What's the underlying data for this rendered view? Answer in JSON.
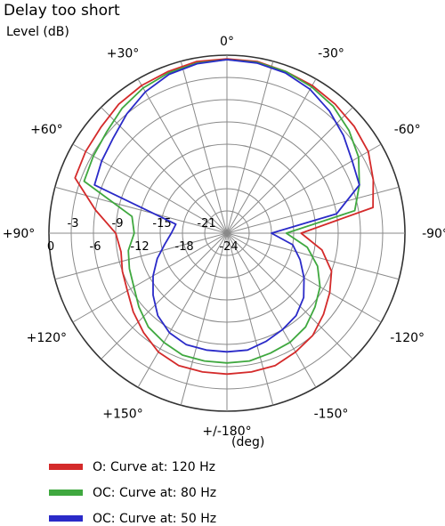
{
  "chart_data": {
    "type": "polar-line",
    "title": "Delay too short",
    "radial_unit": "Level (dB)",
    "angle_unit": "(deg)",
    "rmin": -24,
    "rmax": 0,
    "ring_values": [
      0,
      -3,
      -6,
      -9,
      -12,
      -15,
      -18,
      -21,
      -24
    ],
    "ring_tick_labels": [
      "0",
      "-3",
      "-6",
      "-9",
      "-12",
      "-15",
      "-18",
      "-21",
      "-24"
    ],
    "angle_labels": [
      {
        "angle": 0,
        "text": "0°"
      },
      {
        "angle": -30,
        "text": "-30°"
      },
      {
        "angle": -60,
        "text": "-60°"
      },
      {
        "angle": -90,
        "text": "-90°"
      },
      {
        "angle": -120,
        "text": "-120°"
      },
      {
        "angle": -150,
        "text": "-150°"
      },
      {
        "angle": 180,
        "text": "+/-180°"
      },
      {
        "angle": 150,
        "text": "+150°"
      },
      {
        "angle": 120,
        "text": "+120°"
      },
      {
        "angle": 90,
        "text": "+90°"
      },
      {
        "angle": 60,
        "text": "+60°"
      },
      {
        "angle": 30,
        "text": "+30°"
      }
    ],
    "angles": [
      0,
      10,
      20,
      30,
      40,
      50,
      60,
      70,
      80,
      90,
      100,
      110,
      120,
      130,
      140,
      150,
      160,
      170,
      180,
      190,
      200,
      210,
      220,
      230,
      240,
      250,
      260,
      270,
      280,
      290,
      300,
      310,
      320,
      330,
      340,
      350
    ],
    "series": [
      {
        "name": "O: Curve at: 120 Hz",
        "color": "#d42a2a",
        "values": [
          -0.5,
          -0.5,
          -0.8,
          -1.0,
          -1.3,
          -1.8,
          -2.0,
          -2.2,
          -6.0,
          -9.0,
          -9.5,
          -9.0,
          -8.5,
          -7.5,
          -6.5,
          -5.5,
          -5.0,
          -5.0,
          -5.0,
          -5.0,
          -5.0,
          -5.5,
          -6.0,
          -7.0,
          -8.0,
          -9.0,
          -11.0,
          -14.0,
          -4.0,
          -3.0,
          -2.0,
          -1.6,
          -1.3,
          -1.0,
          -0.8,
          -0.5
        ]
      },
      {
        "name": "OC: Curve at: 80 Hz",
        "color": "#3fa83f",
        "values": [
          -0.6,
          -0.7,
          -1.0,
          -1.4,
          -2.0,
          -2.8,
          -3.2,
          -3.5,
          -11.0,
          -11.5,
          -10.5,
          -10.0,
          -9.5,
          -8.5,
          -7.5,
          -7.0,
          -6.5,
          -6.5,
          -6.5,
          -6.5,
          -6.8,
          -7.0,
          -7.5,
          -8.5,
          -9.5,
          -11.0,
          -13.0,
          -16.0,
          -6.5,
          -5.0,
          -3.5,
          -2.5,
          -1.7,
          -1.2,
          -0.8,
          -0.6
        ]
      },
      {
        "name": "OC: Curve at: 50 Hz",
        "color": "#2a2ac8",
        "values": [
          -0.6,
          -0.8,
          -1.2,
          -2.0,
          -3.0,
          -4.0,
          -4.5,
          -5.0,
          -17.0,
          -16.5,
          -15.5,
          -14.0,
          -12.5,
          -11.0,
          -9.5,
          -8.5,
          -8.0,
          -8.0,
          -8.0,
          -8.0,
          -8.5,
          -9.0,
          -9.5,
          -10.5,
          -12.0,
          -13.5,
          -15.0,
          -18.0,
          -9.0,
          -5.0,
          -4.5,
          -3.5,
          -2.5,
          -1.6,
          -1.0,
          -0.7
        ]
      }
    ],
    "grid": true,
    "legend_position": "bottom"
  }
}
